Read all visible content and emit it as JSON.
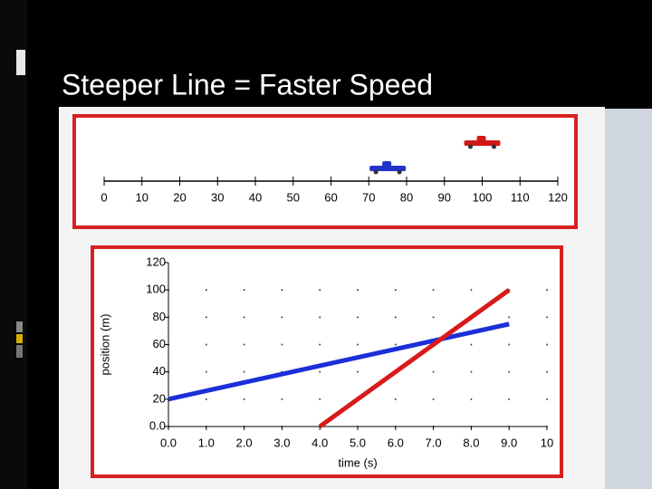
{
  "slide_title": "Steeper Line = Faster Speed",
  "chart_data": [
    {
      "type": "number-line",
      "xlim": [
        0,
        120
      ],
      "xticks": [
        0,
        10,
        20,
        30,
        40,
        50,
        60,
        70,
        80,
        90,
        100,
        110,
        120
      ],
      "series": [
        {
          "color": "#2233cc",
          "values": [
            75
          ]
        },
        {
          "color": "#d01818",
          "values": [
            100
          ]
        }
      ]
    },
    {
      "type": "line",
      "xlabel": "time (s)",
      "ylabel": "position (m)",
      "xlim": [
        0,
        10
      ],
      "ylim": [
        0,
        120
      ],
      "xticks": [
        {
          "value": 0,
          "label": "0.0"
        },
        {
          "value": 1,
          "label": "1.0"
        },
        {
          "value": 2,
          "label": "2.0"
        },
        {
          "value": 3,
          "label": "3.0"
        },
        {
          "value": 4,
          "label": "4.0"
        },
        {
          "value": 5,
          "label": "5.0"
        },
        {
          "value": 6,
          "label": "6.0"
        },
        {
          "value": 7,
          "label": "7.0"
        },
        {
          "value": 8,
          "label": "8.0"
        },
        {
          "value": 9,
          "label": "9.0"
        },
        10
      ],
      "yticks": [
        {
          "value": 0,
          "label": "0.0"
        },
        20,
        40,
        60,
        80,
        100,
        120
      ],
      "grid": "dotted",
      "series": [
        {
          "color": "#1a2fd8",
          "x": [
            0,
            9
          ],
          "values": [
            20,
            75
          ]
        },
        {
          "color": "#d81a1a",
          "x": [
            4,
            9
          ],
          "values": [
            0,
            100
          ]
        }
      ]
    }
  ]
}
